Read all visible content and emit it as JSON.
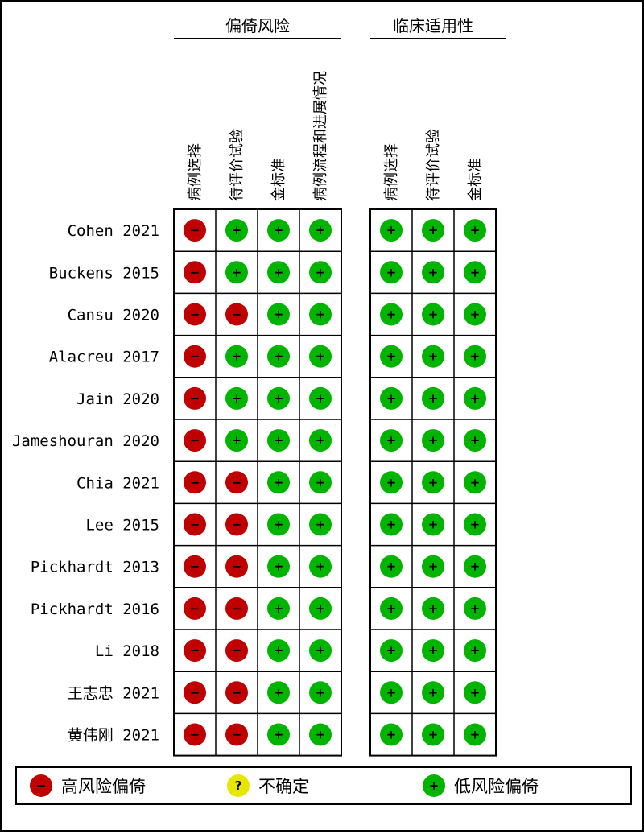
{
  "chart_data": {
    "type": "table",
    "groups": [
      {
        "name": "偏倚风险",
        "columns": [
          "病例选择",
          "待评价试验",
          "金标准",
          "病例流程和进展情况"
        ]
      },
      {
        "name": "临床适用性",
        "columns": [
          "病例选择",
          "待评价试验",
          "金标准"
        ]
      }
    ],
    "studies": [
      {
        "label": "Cohen 2021",
        "bias": [
          "high",
          "low",
          "low",
          "low"
        ],
        "applicability": [
          "low",
          "low",
          "low"
        ]
      },
      {
        "label": "Buckens 2015",
        "bias": [
          "high",
          "low",
          "low",
          "low"
        ],
        "applicability": [
          "low",
          "low",
          "low"
        ]
      },
      {
        "label": "Cansu 2020",
        "bias": [
          "high",
          "high",
          "low",
          "low"
        ],
        "applicability": [
          "low",
          "low",
          "low"
        ]
      },
      {
        "label": "Alacreu 2017",
        "bias": [
          "high",
          "low",
          "low",
          "low"
        ],
        "applicability": [
          "low",
          "low",
          "low"
        ]
      },
      {
        "label": "Jain 2020",
        "bias": [
          "high",
          "low",
          "low",
          "low"
        ],
        "applicability": [
          "low",
          "low",
          "low"
        ]
      },
      {
        "label": "Jameshouran 2020",
        "bias": [
          "high",
          "low",
          "low",
          "low"
        ],
        "applicability": [
          "low",
          "low",
          "low"
        ]
      },
      {
        "label": "Chia 2021",
        "bias": [
          "high",
          "high",
          "low",
          "low"
        ],
        "applicability": [
          "low",
          "low",
          "low"
        ]
      },
      {
        "label": "Lee 2015",
        "bias": [
          "high",
          "high",
          "low",
          "low"
        ],
        "applicability": [
          "low",
          "low",
          "low"
        ]
      },
      {
        "label": "Pickhardt 2013",
        "bias": [
          "high",
          "high",
          "low",
          "low"
        ],
        "applicability": [
          "low",
          "low",
          "low"
        ]
      },
      {
        "label": "Pickhardt 2016",
        "bias": [
          "high",
          "high",
          "low",
          "low"
        ],
        "applicability": [
          "low",
          "low",
          "low"
        ]
      },
      {
        "label": "Li 2018",
        "bias": [
          "high",
          "high",
          "low",
          "low"
        ],
        "applicability": [
          "low",
          "low",
          "low"
        ]
      },
      {
        "label": "王志忠 2021",
        "bias": [
          "high",
          "high",
          "low",
          "low"
        ],
        "applicability": [
          "low",
          "low",
          "low"
        ]
      },
      {
        "label": "黄伟刚 2021",
        "bias": [
          "high",
          "high",
          "low",
          "low"
        ],
        "applicability": [
          "low",
          "low",
          "low"
        ]
      }
    ],
    "legend": [
      {
        "key": "high",
        "label": "高风险偏倚",
        "symbol": "−",
        "color": "#c00000"
      },
      {
        "key": "unclear",
        "label": "不确定",
        "symbol": "?",
        "color": "#e6e600"
      },
      {
        "key": "low",
        "label": "低风险偏倚",
        "symbol": "+",
        "color": "#00b400"
      }
    ]
  }
}
